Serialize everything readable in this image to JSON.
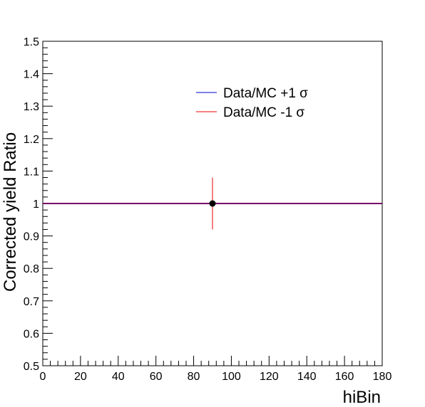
{
  "chart_data": {
    "type": "line",
    "xlabel": "hiBin",
    "ylabel": "Corrected yield Ratio",
    "xlim": [
      0,
      180
    ],
    "ylim": [
      0.5,
      1.5
    ],
    "x_ticks": [
      0,
      20,
      40,
      60,
      80,
      100,
      120,
      140,
      160,
      180
    ],
    "y_ticks": [
      0.5,
      0.6,
      0.7,
      0.8,
      0.9,
      1,
      1.1,
      1.2,
      1.3,
      1.4,
      1.5
    ],
    "x_tick_labels": [
      "0",
      "20",
      "40",
      "60",
      "80",
      "100",
      "120",
      "140",
      "160",
      "180"
    ],
    "y_tick_labels": [
      "0.5",
      "0.6",
      "0.7",
      "0.8",
      "0.9",
      "1",
      "1.1",
      "1.2",
      "1.3",
      "1.4",
      "1.5"
    ],
    "legend_position": "top-right",
    "series": [
      {
        "name": "Data/MC +1 σ",
        "color": "#0000cc",
        "x": [
          0,
          180
        ],
        "y": [
          1.0,
          1.0
        ]
      },
      {
        "name": "Data/MC -1 σ",
        "color": "#ee0000",
        "x": [
          0,
          180
        ],
        "y": [
          1.0,
          1.0
        ]
      }
    ],
    "points": [
      {
        "x": 90,
        "y": 1.0,
        "y_err_low": 0.08,
        "y_err_high": 0.08,
        "marker_color": "#000000",
        "error_color": "#ee0000"
      }
    ]
  }
}
